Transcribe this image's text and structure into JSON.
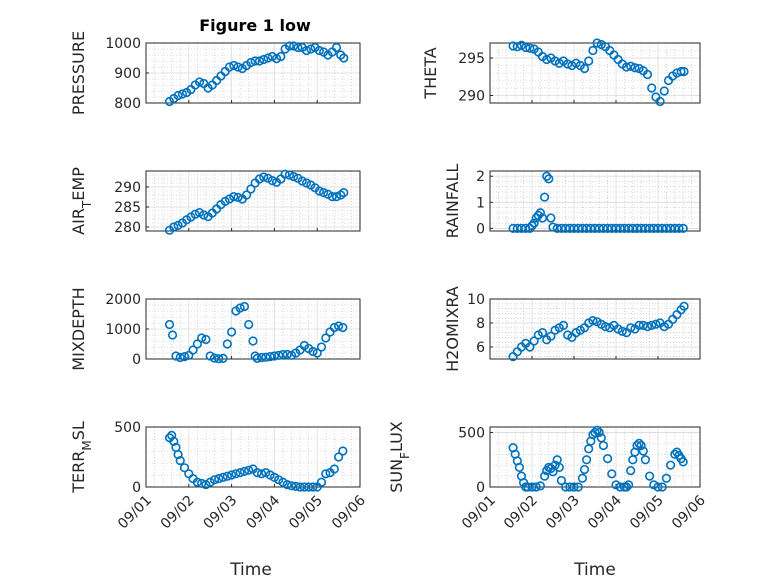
{
  "figure": {
    "title": "Figure 1 low",
    "marker_color": "#0072bd",
    "x_axis_label": "Time"
  },
  "chart_data": [
    {
      "type": "scatter",
      "ylabel": "PRESSURE",
      "ylim": [
        800,
        1000
      ],
      "yticks": [
        800,
        900,
        1000
      ],
      "xlim": [
        0,
        5
      ],
      "xticks": [
        "09/01",
        "09/02",
        "09/03",
        "09/04",
        "09/05",
        "09/06"
      ],
      "x": [
        0.55,
        0.65,
        0.75,
        0.85,
        0.95,
        1.05,
        1.15,
        1.25,
        1.35,
        1.45,
        1.55,
        1.65,
        1.75,
        1.85,
        1.95,
        2.05,
        2.15,
        2.25,
        2.35,
        2.45,
        2.55,
        2.65,
        2.75,
        2.85,
        2.95,
        3.05,
        3.15,
        3.25,
        3.35,
        3.45,
        3.55,
        3.65,
        3.75,
        3.85,
        3.95,
        4.05,
        4.15,
        4.25,
        4.35,
        4.45,
        4.55,
        4.62
      ],
      "y": [
        805,
        815,
        825,
        830,
        835,
        845,
        860,
        870,
        865,
        850,
        860,
        875,
        890,
        905,
        920,
        925,
        920,
        915,
        925,
        935,
        940,
        940,
        945,
        950,
        955,
        948,
        955,
        980,
        990,
        990,
        985,
        985,
        975,
        980,
        985,
        975,
        970,
        960,
        970,
        985,
        960,
        950
      ]
    },
    {
      "type": "scatter",
      "ylabel": "THETA",
      "ylim": [
        289,
        297
      ],
      "yticks": [
        290,
        295
      ],
      "xlim": [
        0,
        5
      ],
      "xticks": [
        "09/01",
        "09/02",
        "09/03",
        "09/04",
        "09/05",
        "09/06"
      ],
      "x": [
        0.55,
        0.65,
        0.75,
        0.85,
        0.95,
        1.05,
        1.15,
        1.25,
        1.35,
        1.45,
        1.55,
        1.65,
        1.75,
        1.85,
        1.95,
        2.05,
        2.15,
        2.25,
        2.35,
        2.45,
        2.55,
        2.65,
        2.75,
        2.85,
        2.95,
        3.05,
        3.15,
        3.25,
        3.35,
        3.45,
        3.55,
        3.65,
        3.75,
        3.85,
        3.95,
        4.05,
        4.15,
        4.25,
        4.35,
        4.45,
        4.55,
        4.62
      ],
      "y": [
        296.6,
        296.5,
        296.7,
        296.4,
        296.3,
        296.2,
        295.8,
        295.2,
        294.8,
        295.0,
        294.6,
        294.3,
        294.6,
        294.2,
        294.0,
        294.3,
        294.0,
        293.6,
        294.6,
        296.0,
        297.0,
        296.8,
        296.5,
        296.0,
        295.4,
        294.8,
        294.2,
        293.8,
        293.9,
        293.7,
        293.6,
        293.3,
        292.8,
        291.0,
        289.8,
        289.2,
        290.6,
        292.0,
        292.6,
        293.0,
        293.2,
        293.2
      ]
    },
    {
      "type": "scatter",
      "ylabel": "AIR_TEMP",
      "ylim": [
        279,
        294
      ],
      "yticks": [
        280,
        285,
        290
      ],
      "xlim": [
        0,
        5
      ],
      "xticks": [
        "09/01",
        "09/02",
        "09/03",
        "09/04",
        "09/05",
        "09/06"
      ],
      "x": [
        0.55,
        0.65,
        0.75,
        0.85,
        0.95,
        1.05,
        1.15,
        1.25,
        1.35,
        1.45,
        1.55,
        1.65,
        1.75,
        1.85,
        1.95,
        2.05,
        2.15,
        2.25,
        2.35,
        2.45,
        2.55,
        2.65,
        2.75,
        2.85,
        2.95,
        3.05,
        3.15,
        3.25,
        3.35,
        3.45,
        3.55,
        3.65,
        3.75,
        3.85,
        3.95,
        4.05,
        4.15,
        4.25,
        4.35,
        4.45,
        4.55,
        4.62
      ],
      "y": [
        279.2,
        280.0,
        280.4,
        281.0,
        281.8,
        282.5,
        283.2,
        283.6,
        283.0,
        282.6,
        283.5,
        284.5,
        285.6,
        286.4,
        287.0,
        287.6,
        287.4,
        287.0,
        288.0,
        289.5,
        291.0,
        292.0,
        292.5,
        292.2,
        291.6,
        291.2,
        292.0,
        293.2,
        293.0,
        292.6,
        292.2,
        291.5,
        291.0,
        290.5,
        289.8,
        289.0,
        288.6,
        288.2,
        287.6,
        287.6,
        288.0,
        288.6
      ]
    },
    {
      "type": "scatter",
      "ylabel": "RAINFALL",
      "ylim": [
        -0.1,
        2.2
      ],
      "yticks": [
        0,
        1,
        2
      ],
      "xlim": [
        0,
        5
      ],
      "xticks": [
        "09/01",
        "09/02",
        "09/03",
        "09/04",
        "09/05",
        "09/06"
      ],
      "x": [
        0.55,
        0.65,
        0.75,
        0.85,
        0.95,
        1.0,
        1.05,
        1.1,
        1.15,
        1.2,
        1.25,
        1.3,
        1.35,
        1.4,
        1.45,
        1.5,
        1.6,
        1.7,
        1.8,
        1.9,
        2.0,
        2.1,
        2.2,
        2.3,
        2.4,
        2.5,
        2.6,
        2.7,
        2.8,
        2.9,
        3.0,
        3.1,
        3.2,
        3.3,
        3.4,
        3.5,
        3.6,
        3.7,
        3.8,
        3.9,
        4.0,
        4.1,
        4.2,
        4.3,
        4.4,
        4.5,
        4.6
      ],
      "y": [
        0,
        0,
        0,
        0,
        0,
        0.1,
        0.2,
        0.4,
        0.5,
        0.6,
        0.4,
        1.2,
        2.0,
        1.9,
        0.4,
        0.05,
        0,
        0,
        0,
        0,
        0,
        0,
        0,
        0,
        0,
        0,
        0,
        0,
        0,
        0,
        0,
        0,
        0,
        0,
        0,
        0,
        0,
        0,
        0,
        0,
        0,
        0,
        0,
        0,
        0,
        0,
        0
      ]
    },
    {
      "type": "scatter",
      "ylabel": "MIXDEPTH",
      "ylim": [
        0,
        2000
      ],
      "yticks": [
        0,
        1000,
        2000
      ],
      "xlim": [
        0,
        5
      ],
      "xticks": [
        "09/01",
        "09/02",
        "09/03",
        "09/04",
        "09/05",
        "09/06"
      ],
      "x": [
        0.55,
        0.62,
        0.7,
        0.8,
        0.9,
        1.0,
        1.1,
        1.2,
        1.3,
        1.4,
        1.5,
        1.6,
        1.7,
        1.8,
        1.9,
        2.0,
        2.1,
        2.2,
        2.3,
        2.4,
        2.5,
        2.55,
        2.6,
        2.7,
        2.8,
        2.9,
        3.0,
        3.1,
        3.2,
        3.3,
        3.4,
        3.5,
        3.6,
        3.7,
        3.8,
        3.9,
        4.0,
        4.1,
        4.2,
        4.3,
        4.4,
        4.5,
        4.6
      ],
      "y": [
        1150,
        800,
        100,
        50,
        80,
        120,
        300,
        500,
        700,
        650,
        100,
        30,
        10,
        20,
        500,
        900,
        1600,
        1700,
        1750,
        1150,
        600,
        100,
        20,
        50,
        60,
        80,
        100,
        120,
        150,
        150,
        120,
        200,
        300,
        450,
        350,
        250,
        200,
        400,
        700,
        900,
        1050,
        1100,
        1050
      ]
    },
    {
      "type": "scatter",
      "ylabel": "H2OMIXRA",
      "ylim": [
        5,
        10
      ],
      "yticks": [
        6,
        8,
        10
      ],
      "xlim": [
        0,
        5
      ],
      "xticks": [
        "09/01",
        "09/02",
        "09/03",
        "09/04",
        "09/05",
        "09/06"
      ],
      "x": [
        0.55,
        0.65,
        0.75,
        0.85,
        0.95,
        1.05,
        1.15,
        1.25,
        1.35,
        1.45,
        1.55,
        1.65,
        1.75,
        1.85,
        1.95,
        2.05,
        2.15,
        2.25,
        2.35,
        2.45,
        2.55,
        2.65,
        2.75,
        2.85,
        2.95,
        3.05,
        3.15,
        3.25,
        3.35,
        3.45,
        3.55,
        3.65,
        3.75,
        3.85,
        3.95,
        4.05,
        4.15,
        4.25,
        4.35,
        4.45,
        4.55,
        4.62
      ],
      "y": [
        5.2,
        5.6,
        6.0,
        6.3,
        6.0,
        6.5,
        7.0,
        7.2,
        6.6,
        6.9,
        7.4,
        7.6,
        7.8,
        7.0,
        6.8,
        7.2,
        7.4,
        7.6,
        8.0,
        8.2,
        8.1,
        7.9,
        7.7,
        7.6,
        7.8,
        7.5,
        7.3,
        7.2,
        7.6,
        7.5,
        7.8,
        7.8,
        7.7,
        7.8,
        7.9,
        8.0,
        7.7,
        7.9,
        8.3,
        8.7,
        9.1,
        9.4
      ]
    },
    {
      "type": "scatter",
      "ylabel": "TERR_MSL",
      "ylim": [
        0,
        500
      ],
      "yticks": [
        0,
        500
      ],
      "xlim": [
        0,
        5
      ],
      "xticks": [
        "09/01",
        "09/02",
        "09/03",
        "09/04",
        "09/05",
        "09/06"
      ],
      "x": [
        0.55,
        0.6,
        0.65,
        0.7,
        0.75,
        0.8,
        0.9,
        1.0,
        1.1,
        1.2,
        1.3,
        1.4,
        1.5,
        1.6,
        1.7,
        1.8,
        1.9,
        2.0,
        2.1,
        2.2,
        2.3,
        2.4,
        2.5,
        2.6,
        2.7,
        2.8,
        2.9,
        3.0,
        3.1,
        3.2,
        3.3,
        3.4,
        3.5,
        3.6,
        3.7,
        3.8,
        3.9,
        4.0,
        4.1,
        4.2,
        4.3,
        4.4,
        4.5,
        4.6
      ],
      "y": [
        410,
        430,
        380,
        330,
        270,
        220,
        160,
        110,
        70,
        40,
        30,
        20,
        40,
        60,
        70,
        80,
        90,
        100,
        110,
        120,
        130,
        140,
        150,
        120,
        110,
        120,
        100,
        80,
        60,
        40,
        20,
        10,
        5,
        0,
        0,
        0,
        0,
        0,
        40,
        110,
        120,
        150,
        250,
        300
      ]
    },
    {
      "type": "scatter",
      "ylabel": "SUN_FLUX",
      "ylim": [
        0,
        550
      ],
      "yticks": [
        0,
        500
      ],
      "xlim": [
        0,
        5
      ],
      "xticks": [
        "09/01",
        "09/02",
        "09/03",
        "09/04",
        "09/05",
        "09/06"
      ],
      "x": [
        0.55,
        0.6,
        0.65,
        0.7,
        0.75,
        0.8,
        0.85,
        0.9,
        1.0,
        1.1,
        1.2,
        1.3,
        1.35,
        1.4,
        1.45,
        1.5,
        1.55,
        1.6,
        1.65,
        1.7,
        1.8,
        1.9,
        2.0,
        2.1,
        2.2,
        2.25,
        2.3,
        2.35,
        2.4,
        2.45,
        2.5,
        2.55,
        2.6,
        2.65,
        2.7,
        2.8,
        2.9,
        3.0,
        3.1,
        3.2,
        3.25,
        3.3,
        3.35,
        3.4,
        3.45,
        3.5,
        3.55,
        3.6,
        3.65,
        3.7,
        3.8,
        3.9,
        4.0,
        4.1,
        4.2,
        4.3,
        4.4,
        4.45,
        4.5,
        4.55,
        4.6
      ],
      "y": [
        360,
        300,
        240,
        180,
        100,
        40,
        0,
        0,
        0,
        0,
        10,
        100,
        150,
        180,
        170,
        140,
        200,
        250,
        180,
        60,
        0,
        0,
        0,
        0,
        80,
        160,
        250,
        350,
        420,
        480,
        500,
        520,
        500,
        450,
        380,
        260,
        120,
        20,
        0,
        0,
        0,
        20,
        150,
        250,
        320,
        380,
        400,
        380,
        330,
        250,
        100,
        20,
        0,
        0,
        80,
        200,
        300,
        320,
        290,
        260,
        230
      ]
    }
  ]
}
